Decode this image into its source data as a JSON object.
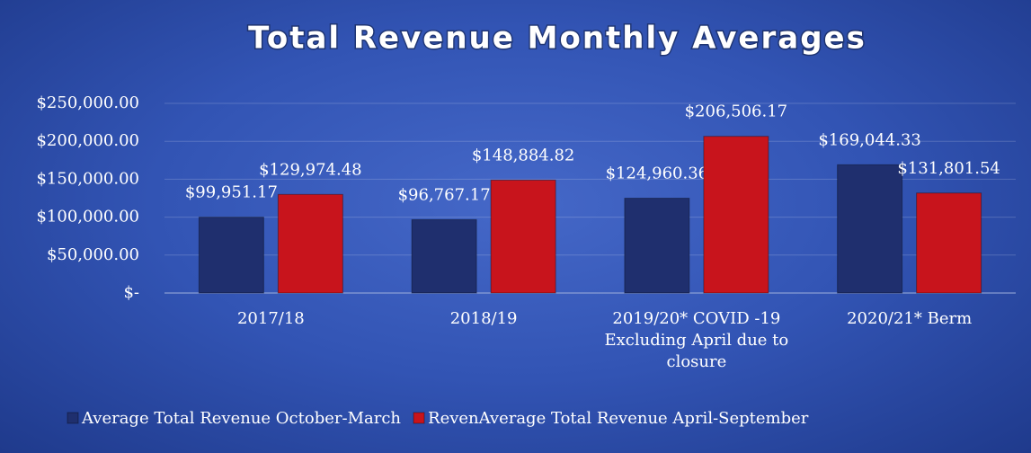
{
  "chart_data": {
    "type": "bar",
    "title": "Total Revenue Monthly Averages",
    "categories": [
      "2017/18",
      "2018/19",
      "2019/20* COVID -19 Excluding April due to closure",
      "2020/21* Berm"
    ],
    "series": [
      {
        "name": "Average Total Revenue October-March",
        "color": "#1f2f6e",
        "values": [
          99951.17,
          96767.17,
          124960.36,
          169044.33
        ],
        "value_labels": [
          "$99,951.17",
          "$96,767.17",
          "$124,960.36",
          "$169,044.33"
        ]
      },
      {
        "name": "RevenAverage Total Revenue April-September",
        "color": "#c8141c",
        "values": [
          129974.48,
          148884.82,
          206506.17,
          131801.54
        ],
        "value_labels": [
          "$129,974.48",
          "$148,884.82",
          "$206,506.17",
          "$131,801.54"
        ]
      }
    ],
    "ylim": [
      0,
      250000
    ],
    "yticks": [
      {
        "value": 0,
        "label": "$-"
      },
      {
        "value": 50000,
        "label": "$50,000.00"
      },
      {
        "value": 100000,
        "label": "$100,000.00"
      },
      {
        "value": 150000,
        "label": "$150,000.00"
      },
      {
        "value": 200000,
        "label": "$200,000.00"
      },
      {
        "value": 250000,
        "label": "$250,000.00"
      }
    ],
    "grid": true,
    "legend": "bottom"
  }
}
